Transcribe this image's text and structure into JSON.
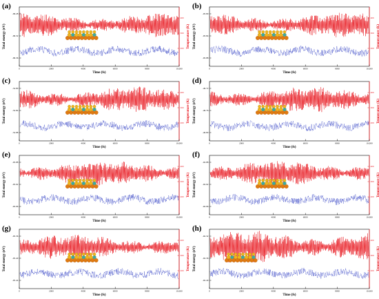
{
  "figure": {
    "panels": [
      {
        "label": "(a)",
        "left_ticks": [
          "-99.28",
          "-99.32",
          "-99.36"
        ],
        "right_ticks": [
          "400",
          "300",
          "200"
        ],
        "x_ticks": [
          "0",
          "2000",
          "4000",
          "6000",
          "8000",
          "10,000"
        ]
      },
      {
        "label": "(b)",
        "left_ticks": [
          "-95.80",
          "-95.84",
          "-95.88"
        ],
        "right_ticks": [
          "400",
          "300",
          "200"
        ],
        "x_ticks": [
          "0",
          "2000",
          "4000",
          "6000",
          "8000",
          "10,000"
        ]
      },
      {
        "label": "(c)",
        "left_ticks": [
          "-52.80",
          "-52.84",
          "-52.88"
        ],
        "right_ticks": [
          "400",
          "300",
          "200"
        ],
        "x_ticks": [
          "0",
          "2000",
          "4000",
          "6000",
          "8000",
          "10,000"
        ]
      },
      {
        "label": "(d)",
        "left_ticks": [
          "-49.72",
          "-49.76",
          "-49.80"
        ],
        "right_ticks": [
          "400",
          "300",
          "200"
        ],
        "x_ticks": [
          "0",
          "2000",
          "4000",
          "6000",
          "8000",
          "10,000"
        ]
      },
      {
        "label": "(e)",
        "left_ticks": [
          "-95.88",
          "-95.92",
          "-95.96"
        ],
        "right_ticks": [
          "400",
          "300",
          "200"
        ],
        "x_ticks": [
          "0",
          "2000",
          "4000",
          "6000",
          "8000",
          "10,000"
        ]
      },
      {
        "label": "(f)",
        "left_ticks": [
          "-92.88",
          "-92.92",
          "-92.96"
        ],
        "right_ticks": [
          "400",
          "300",
          "200"
        ],
        "x_ticks": [
          "0",
          "2000",
          "4000",
          "6000",
          "8000",
          "10,000"
        ]
      },
      {
        "label": "(g)",
        "left_ticks": [
          "-95.36",
          "-95.40",
          "-95.44"
        ],
        "right_ticks": [
          "400",
          "300",
          "200"
        ],
        "x_ticks": [
          "0",
          "2000",
          "4000",
          "6000",
          "8000",
          "10,000"
        ]
      },
      {
        "label": "(h)",
        "left_ticks": [
          "-92.32",
          "-92.36",
          "-92.40"
        ],
        "right_ticks": [
          "400",
          "300",
          "200"
        ],
        "x_ticks": [
          "0",
          "2000",
          "4000",
          "6000",
          "8000",
          "10,000"
        ]
      }
    ],
    "xlabel": "Time (fs)",
    "ylabel_left": "Total energy (eV)",
    "ylabel_right": "Temperature (K)",
    "colors": {
      "temperature": "#e8141c",
      "energy": "#1f2fbf",
      "axis_left": "#000000",
      "axis_right": "#e8141c",
      "atom_yellow": "#f2b51c",
      "atom_teal": "#3aa9a4",
      "atom_orange": "#e07a10"
    }
  },
  "chart_data": [
    {
      "type": "line",
      "panel": "(a)",
      "xlabel": "Time (fs)",
      "ylabel": "Total energy (eV)",
      "y2label": "Temperature (K)",
      "xlim": [
        0,
        10000
      ],
      "ylim_energy": [
        -99.38,
        -99.26
      ],
      "ylim_temperature": [
        100,
        500
      ],
      "series": [
        {
          "name": "Temperature",
          "axis": "right",
          "mean": 300,
          "amplitude": 45,
          "seed": 11
        },
        {
          "name": "Total energy",
          "axis": "left",
          "mean": -99.345,
          "amplitude": 0.012,
          "seed": 21
        }
      ]
    },
    {
      "type": "line",
      "panel": "(b)",
      "xlabel": "Time (fs)",
      "ylabel": "Total energy (eV)",
      "y2label": "Temperature (K)",
      "xlim": [
        0,
        10000
      ],
      "ylim_energy": [
        -95.9,
        -95.78
      ],
      "ylim_temperature": [
        100,
        500
      ],
      "series": [
        {
          "name": "Temperature",
          "axis": "right",
          "mean": 300,
          "amplitude": 45,
          "seed": 12
        },
        {
          "name": "Total energy",
          "axis": "left",
          "mean": -95.865,
          "amplitude": 0.012,
          "seed": 22
        }
      ]
    },
    {
      "type": "line",
      "panel": "(c)",
      "xlabel": "Time (fs)",
      "ylabel": "Total energy (eV)",
      "y2label": "Temperature (K)",
      "xlim": [
        0,
        10000
      ],
      "ylim_energy": [
        -52.9,
        -52.78
      ],
      "ylim_temperature": [
        100,
        500
      ],
      "series": [
        {
          "name": "Temperature",
          "axis": "right",
          "mean": 300,
          "amplitude": 45,
          "seed": 13
        },
        {
          "name": "Total energy",
          "axis": "left",
          "mean": -52.865,
          "amplitude": 0.012,
          "seed": 23
        }
      ]
    },
    {
      "type": "line",
      "panel": "(d)",
      "xlabel": "Time (fs)",
      "ylabel": "Total energy (eV)",
      "y2label": "Temperature (K)",
      "xlim": [
        0,
        10000
      ],
      "ylim_energy": [
        -49.82,
        -49.7
      ],
      "ylim_temperature": [
        100,
        500
      ],
      "series": [
        {
          "name": "Temperature",
          "axis": "right",
          "mean": 300,
          "amplitude": 45,
          "seed": 14
        },
        {
          "name": "Total energy",
          "axis": "left",
          "mean": -49.785,
          "amplitude": 0.012,
          "seed": 24
        }
      ]
    },
    {
      "type": "line",
      "panel": "(e)",
      "xlabel": "Time (fs)",
      "ylabel": "Total energy (eV)",
      "y2label": "Temperature (K)",
      "xlim": [
        0,
        10000
      ],
      "ylim_energy": [
        -95.98,
        -95.86
      ],
      "ylim_temperature": [
        100,
        500
      ],
      "series": [
        {
          "name": "Temperature",
          "axis": "right",
          "mean": 300,
          "amplitude": 45,
          "seed": 15
        },
        {
          "name": "Total energy",
          "axis": "left",
          "mean": -95.945,
          "amplitude": 0.012,
          "seed": 25
        }
      ]
    },
    {
      "type": "line",
      "panel": "(f)",
      "xlabel": "Time (fs)",
      "ylabel": "Total energy (eV)",
      "y2label": "Temperature (K)",
      "xlim": [
        0,
        10000
      ],
      "ylim_energy": [
        -92.98,
        -92.86
      ],
      "ylim_temperature": [
        100,
        500
      ],
      "series": [
        {
          "name": "Temperature",
          "axis": "right",
          "mean": 300,
          "amplitude": 45,
          "seed": 16
        },
        {
          "name": "Total energy",
          "axis": "left",
          "mean": -92.945,
          "amplitude": 0.012,
          "seed": 26
        }
      ]
    },
    {
      "type": "line",
      "panel": "(g)",
      "xlabel": "Time (fs)",
      "ylabel": "Total energy (eV)",
      "y2label": "Temperature (K)",
      "xlim": [
        0,
        10000
      ],
      "ylim_energy": [
        -95.46,
        -95.34
      ],
      "ylim_temperature": [
        100,
        500
      ],
      "series": [
        {
          "name": "Temperature",
          "axis": "right",
          "mean": 300,
          "amplitude": 45,
          "seed": 17
        },
        {
          "name": "Total energy",
          "axis": "left",
          "mean": -95.425,
          "amplitude": 0.012,
          "seed": 27
        }
      ]
    },
    {
      "type": "line",
      "panel": "(h)",
      "xlabel": "Time (fs)",
      "ylabel": "Total energy (eV)",
      "y2label": "Temperature (K)",
      "xlim": [
        0,
        10000
      ],
      "ylim_energy": [
        -92.42,
        -92.3
      ],
      "ylim_temperature": [
        100,
        500
      ],
      "series": [
        {
          "name": "Temperature",
          "axis": "right",
          "mean": 300,
          "amplitude": 60,
          "seed": 18
        },
        {
          "name": "Total energy",
          "axis": "left",
          "mean": -92.385,
          "amplitude": 0.012,
          "seed": 28
        }
      ]
    }
  ]
}
